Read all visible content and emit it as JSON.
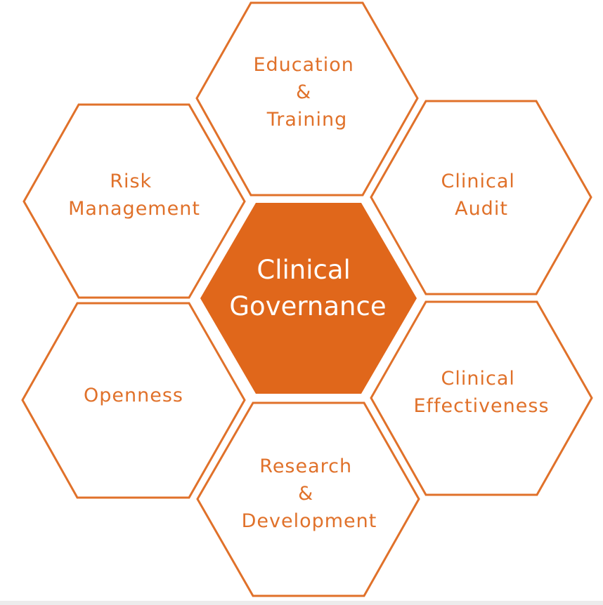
{
  "diagram": {
    "accent_color": "#e0712a",
    "center_fill_color": "#e0671b",
    "center": {
      "lines": [
        "Clinical",
        "Governance"
      ]
    },
    "top": {
      "lines": [
        "Education",
        "&",
        "Training"
      ]
    },
    "upper_right": {
      "lines": [
        "Clinical",
        "Audit"
      ]
    },
    "lower_right": {
      "lines": [
        "Clinical",
        "Effectiveness"
      ]
    },
    "bottom": {
      "lines": [
        "Research",
        "&",
        "Development"
      ]
    },
    "lower_left": {
      "lines": [
        "Openness"
      ]
    },
    "upper_left": {
      "lines": [
        "Risk",
        "Management"
      ]
    }
  }
}
